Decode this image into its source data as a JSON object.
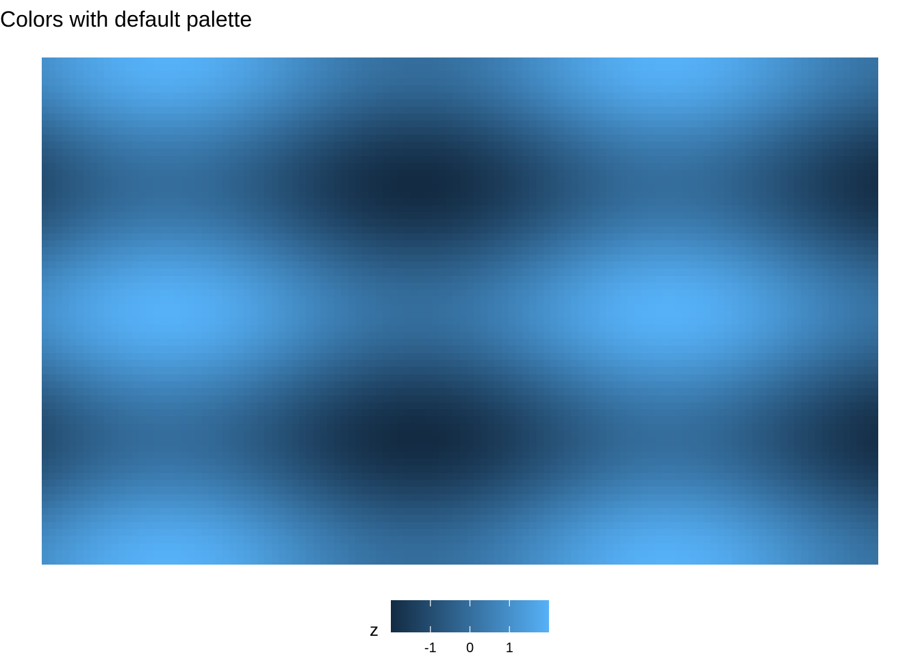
{
  "chart_data": {
    "type": "heatmap",
    "title": "Colors with default palette",
    "xlabel": "",
    "ylabel": "",
    "legend": {
      "title": "z",
      "position": "bottom",
      "range": [
        -2,
        2
      ],
      "breaks": [
        -1,
        0,
        1
      ],
      "break_labels": [
        "-1",
        "0",
        "1"
      ],
      "low_color": "#132B43",
      "high_color": "#56B1F7"
    },
    "grid_cells": [
      120,
      72
    ],
    "x_range": [
      0,
      10.5
    ],
    "y_range": [
      0,
      12.6
    ],
    "surface": "sin(x) + cos(y)",
    "axes_visible": false,
    "grid": false
  }
}
